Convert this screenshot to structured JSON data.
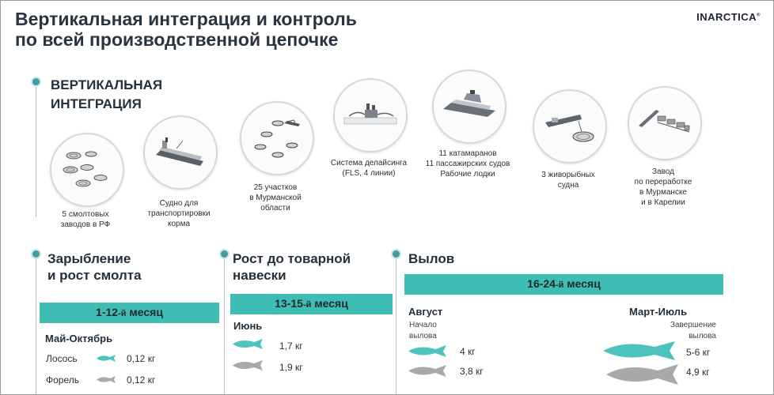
{
  "slide": {
    "title_line1": "Вертикальная интеграция и контроль",
    "title_line2": "по всей производственной цепочке",
    "logo": "INARCTICA",
    "logo_mark": "®"
  },
  "vertical_integration": {
    "title_line1": "ВЕРТИКАЛЬНАЯ",
    "title_line2": "ИНТЕГРАЦИЯ",
    "items": [
      {
        "icon": "smolt-plant-icon",
        "caption": [
          "5 смолтовых",
          "заводов в РФ"
        ]
      },
      {
        "icon": "feed-ship-icon",
        "caption": [
          "Судно для",
          "транспортировки",
          "корма"
        ]
      },
      {
        "icon": "fish-farm-sites-icon",
        "caption": [
          "25 участков",
          "в Мурманской",
          "области"
        ]
      },
      {
        "icon": "delousing-system-icon",
        "caption": [
          "Система делайсинга",
          "(FLS, 4 линии)"
        ]
      },
      {
        "icon": "catamaran-icon",
        "caption": [
          "11 катамаранов",
          "11 пассажирских судов",
          "Рабочие лодки"
        ]
      },
      {
        "icon": "wellboat-icon",
        "caption": [
          "3 живорыбных",
          "судна"
        ]
      },
      {
        "icon": "processing-plant-icon",
        "caption": [
          "Завод",
          "по переработке",
          "в Мурманске",
          "и в Карелии"
        ]
      }
    ]
  },
  "stocking": {
    "title_line1": "Зарыбление",
    "title_line2": "и рост смолта",
    "band_main": "1-12",
    "band_suffix": "-й",
    "band_rest": " месяц",
    "period": "Май-Октябрь",
    "rows": [
      {
        "label": "Лосось",
        "value": "0,12 кг",
        "color": "#4ec3bd"
      },
      {
        "label": "Форель",
        "value": "0,12 кг",
        "color": "#a9a9a9"
      }
    ]
  },
  "growth": {
    "title_line1": "Рост до товарной",
    "title_line2": "навески",
    "band_main": "13-15",
    "band_suffix": "-й",
    "band_rest": " месяц",
    "period": "Июнь",
    "rows": [
      {
        "value": "1,7 кг",
        "color": "#4ec3bd"
      },
      {
        "value": "1,9 кг",
        "color": "#a9a9a9"
      }
    ]
  },
  "harvest": {
    "title": "Вылов",
    "band_main": "16-24",
    "band_suffix": "-й",
    "band_rest": " месяц",
    "left": {
      "period": "Август",
      "note_line1": "Начало",
      "note_line2": "вылова",
      "rows": [
        {
          "value": "4 кг",
          "color": "#4ec3bd"
        },
        {
          "value": "3,8 кг",
          "color": "#a9a9a9"
        }
      ]
    },
    "right": {
      "period": "Март-Июль",
      "note_line1": "Завершение",
      "note_line2": "вылова",
      "rows": [
        {
          "value": "5-6 кг",
          "color": "#4ec3bd"
        },
        {
          "value": "4,9 кг",
          "color": "#a9a9a9"
        }
      ]
    }
  },
  "colors": {
    "accent": "#3fbcb3",
    "salmon": "#4ec3bd",
    "trout": "#a9a9a9",
    "dot": "#3e9da0"
  }
}
